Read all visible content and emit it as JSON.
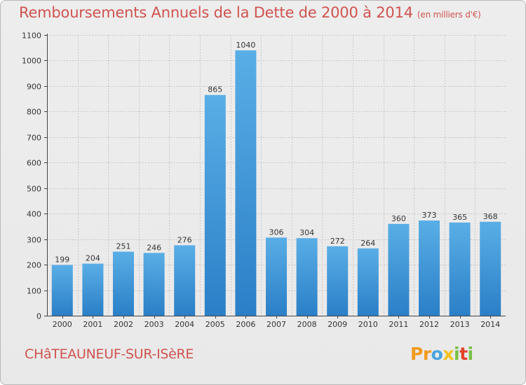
{
  "chart_data": {
    "type": "bar",
    "title": "Remboursements Annuels de la Dette de 2000 à 2014",
    "unit": "(en milliers d'€)",
    "categories": [
      "2000",
      "2001",
      "2002",
      "2003",
      "2004",
      "2005",
      "2006",
      "2007",
      "2008",
      "2009",
      "2010",
      "2011",
      "2012",
      "2013",
      "2014"
    ],
    "values": [
      199,
      204,
      251,
      246,
      276,
      865,
      1040,
      306,
      304,
      272,
      264,
      360,
      373,
      365,
      368
    ],
    "data_labels": [
      "199",
      "204",
      "251",
      "246",
      "276",
      "865",
      "1040",
      "306",
      "304",
      "272",
      "264",
      "360",
      "373",
      "365",
      "368"
    ],
    "ylim": [
      0,
      1100
    ],
    "yticks": [
      0,
      100,
      200,
      300,
      400,
      500,
      600,
      700,
      800,
      900,
      1000,
      1100
    ],
    "ytick_labels": [
      "0",
      "100",
      "200",
      "300",
      "400",
      "500",
      "600",
      "700",
      "800",
      "900",
      "1000",
      "1100"
    ],
    "xlabel": "",
    "ylabel": "",
    "grid": true,
    "legend": "none"
  },
  "footer": {
    "commune": "CHâTEAUNEUF-SUR-ISèRE",
    "brand": {
      "letters": [
        "P",
        "r",
        "o",
        "x",
        "i",
        "t",
        "i"
      ],
      "colors": [
        "#f29a1c",
        "#f29a1c",
        "#4aa3df",
        "#f4c21a",
        "#7ac143",
        "#e2432a",
        "#7ac143"
      ]
    }
  },
  "colors": {
    "title": "#d0534f",
    "bar_light": "#5aaee6",
    "bar_dark": "#2a7fc7",
    "grid": "#c8c8c8",
    "axis": "#444444",
    "text": "#333333"
  }
}
